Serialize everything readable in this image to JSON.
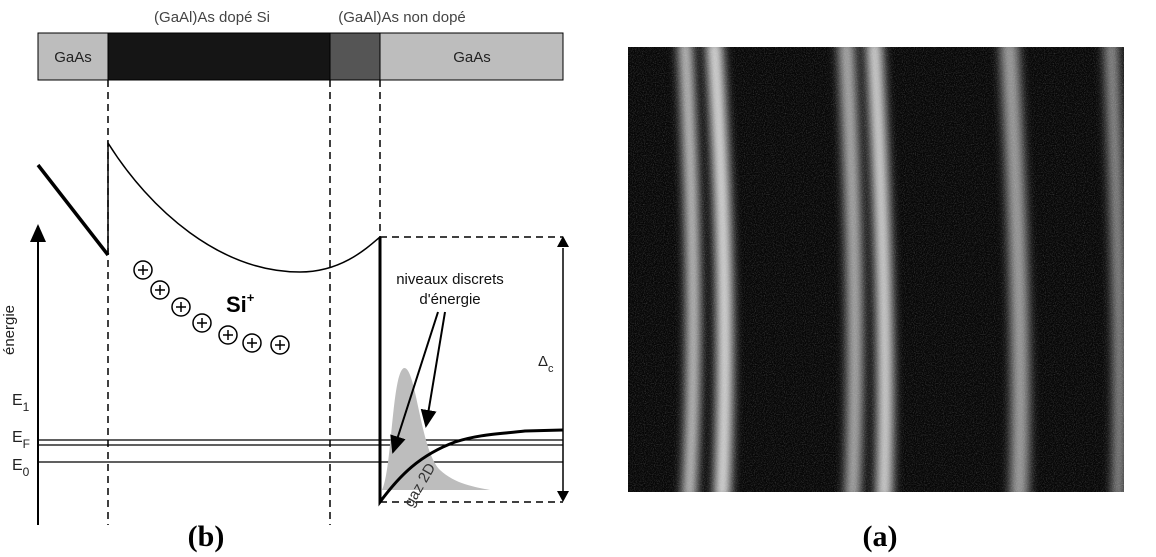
{
  "layers": [
    {
      "label": "GaAs"
    },
    {
      "label": ""
    },
    {
      "label": ""
    },
    {
      "label": "GaAs"
    }
  ],
  "top_labels": [
    "(GaAl)As dopé Si",
    "(GaAl)As non dopé"
  ],
  "axis_label": "énergie",
  "ion_label": {
    "main": "Si",
    "sup": "+"
  },
  "levels": [
    {
      "main": "E",
      "sub": "1"
    },
    {
      "main": "E",
      "sub": "F"
    },
    {
      "main": "E",
      "sub": "0"
    }
  ],
  "annotation": [
    "niveaux discrets",
    "d'énergie"
  ],
  "offset_label": {
    "main": "Δ",
    "sub": "c"
  },
  "gas_label": "gaz 2D",
  "panel_labels": [
    "(b)",
    "(a)"
  ]
}
